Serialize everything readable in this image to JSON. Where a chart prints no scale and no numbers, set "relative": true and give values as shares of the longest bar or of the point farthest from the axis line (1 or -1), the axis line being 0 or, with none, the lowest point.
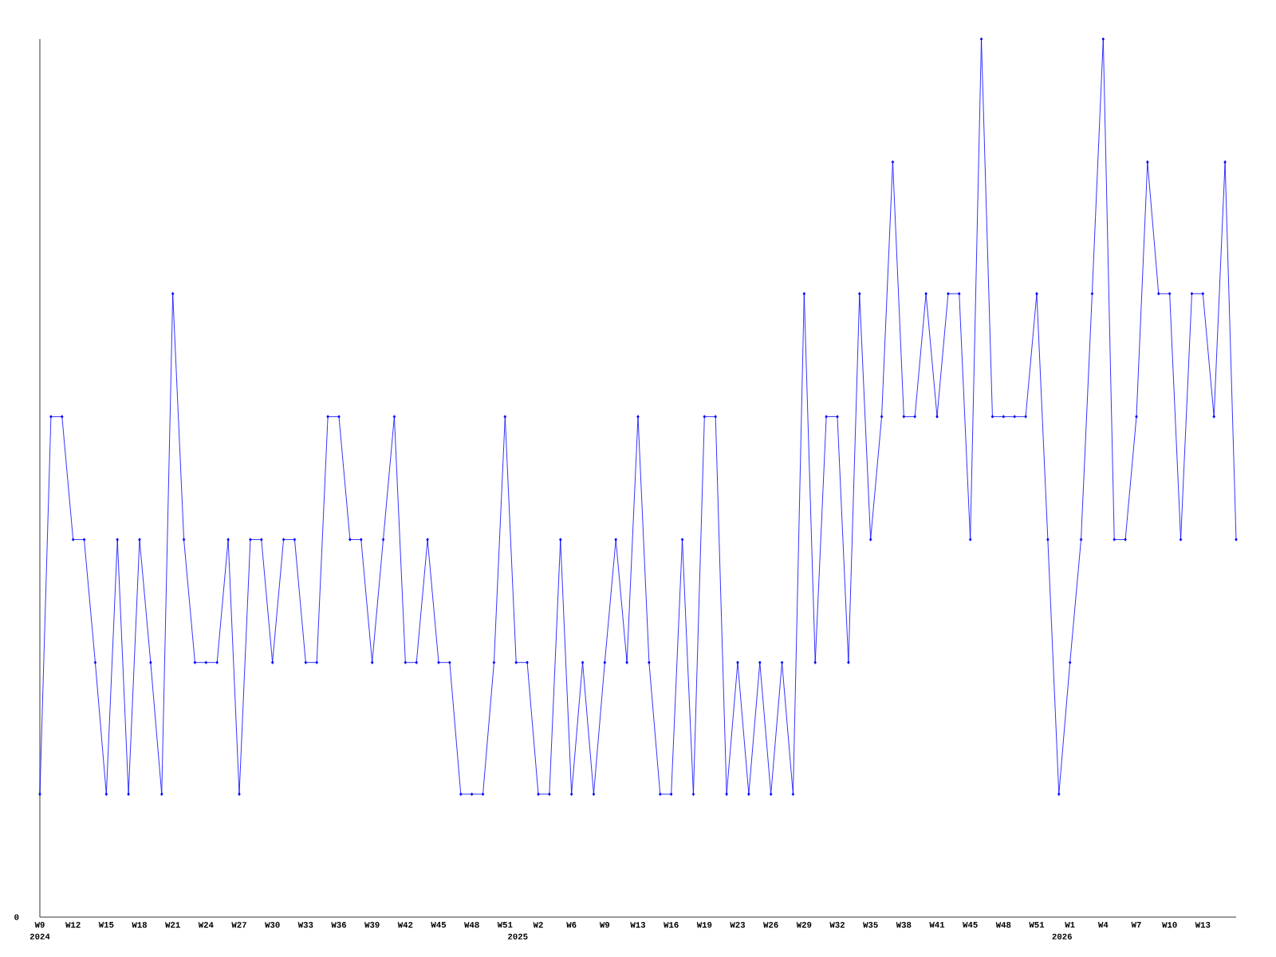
{
  "chart_data": {
    "type": "line",
    "relative": true,
    "color": "#0000ff",
    "marker": "diamond",
    "categories": [
      "W9",
      null,
      null,
      "W12",
      null,
      null,
      "W15",
      null,
      null,
      "W18",
      null,
      null,
      "W21",
      null,
      null,
      "W24",
      null,
      null,
      "W27",
      null,
      null,
      "W30",
      null,
      null,
      "W33",
      null,
      null,
      "W36",
      null,
      null,
      "W39",
      null,
      null,
      "W42",
      null,
      null,
      "W45",
      null,
      null,
      "W48",
      null,
      null,
      "W51",
      null,
      null,
      "W2",
      null,
      null,
      "W6",
      null,
      null,
      "W9",
      null,
      null,
      "W13",
      null,
      null,
      "W16",
      null,
      null,
      "W19",
      null,
      null,
      "W23",
      null,
      null,
      "W26",
      null,
      null,
      "W29",
      null,
      null,
      "W32",
      null,
      null,
      "W35",
      null,
      null,
      "W38",
      null,
      null,
      "W41",
      null,
      null,
      "W45",
      null,
      null,
      "W48",
      null,
      null,
      "W51",
      null,
      null,
      "W1",
      null,
      null,
      "W4",
      null,
      null,
      "W7",
      null,
      null,
      "W10",
      null,
      null,
      "W13",
      null,
      null,
      null
    ],
    "values": [
      0.14,
      0.57,
      0.57,
      0.43,
      0.43,
      0.29,
      0.14,
      0.43,
      0.14,
      0.43,
      0.29,
      0.14,
      0.71,
      0.43,
      0.29,
      0.29,
      0.29,
      0.43,
      0.14,
      0.43,
      0.43,
      0.29,
      0.43,
      0.43,
      0.29,
      0.29,
      0.57,
      0.57,
      0.43,
      0.43,
      0.29,
      0.43,
      0.57,
      0.29,
      0.29,
      0.43,
      0.29,
      0.29,
      0.14,
      0.14,
      0.14,
      0.29,
      0.57,
      0.29,
      0.29,
      0.14,
      0.14,
      0.43,
      0.14,
      0.29,
      0.14,
      0.29,
      0.43,
      0.29,
      0.57,
      0.29,
      0.14,
      0.14,
      0.43,
      0.14,
      0.57,
      0.57,
      0.14,
      0.29,
      0.14,
      0.29,
      0.14,
      0.29,
      0.14,
      0.71,
      0.29,
      0.57,
      0.57,
      0.29,
      0.71,
      0.43,
      0.57,
      0.86,
      0.57,
      0.57,
      0.71,
      0.57,
      0.71,
      0.71,
      0.43,
      1,
      0.57,
      0.57,
      0.57,
      0.57,
      0.71,
      0.43,
      0.14,
      0.29,
      0.43,
      0.71,
      1,
      0.43,
      0.43,
      0.57,
      0.86,
      0.71,
      0.71,
      0.43,
      0.71,
      0.71,
      0.57,
      0.86,
      0.43
    ],
    "annotations": [
      "0",
      "2024",
      "2025",
      "2026"
    ]
  }
}
